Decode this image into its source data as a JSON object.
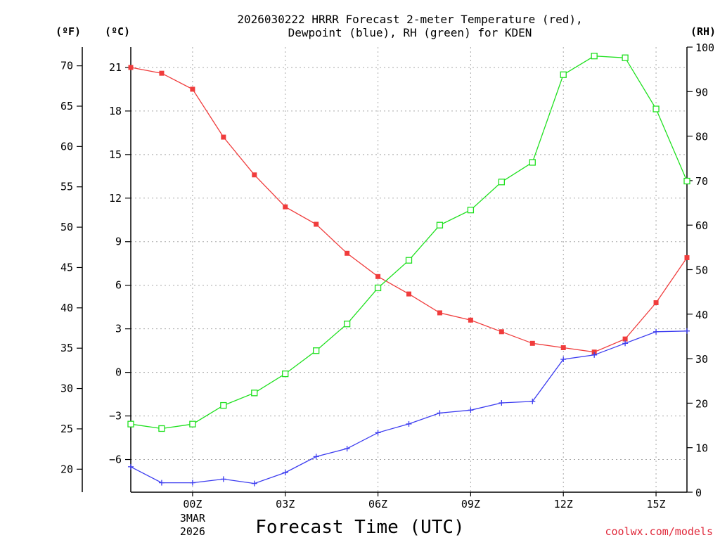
{
  "chart_data": {
    "type": "line",
    "title": [
      "2026030222 HRRR Forecast 2-meter Temperature (red),",
      "Dewpoint (blue), RH (green) for KDEN"
    ],
    "xlabel": "Forecast Time (UTC)",
    "credit": "coolwx.com/models",
    "axis_units": {
      "fahrenheit": "(ºF)",
      "celsius": "(ºC)",
      "rh": "(RH)"
    },
    "x": [
      -2,
      -1,
      0,
      1,
      2,
      3,
      4,
      5,
      6,
      7,
      8,
      9,
      10,
      11,
      12,
      13,
      14,
      15,
      16
    ],
    "xlim": [
      -2,
      16
    ],
    "x_ticks": [
      {
        "x": 0,
        "label": "00Z",
        "sub": [
          "3MAR",
          "2026"
        ]
      },
      {
        "x": 3,
        "label": "03Z"
      },
      {
        "x": 6,
        "label": "06Z"
      },
      {
        "x": 9,
        "label": "09Z"
      },
      {
        "x": 12,
        "label": "12Z"
      },
      {
        "x": 15,
        "label": "15Z"
      }
    ],
    "celsius_range": [
      -8.25,
      22.4
    ],
    "celsius_ticks": [
      21,
      18,
      15,
      12,
      9,
      6,
      3,
      0,
      -3,
      -6
    ],
    "fahrenheit_ticks": [
      70,
      65,
      60,
      55,
      50,
      45,
      40,
      35,
      30,
      25,
      20
    ],
    "rh_range": [
      0,
      100
    ],
    "rh_ticks": [
      100,
      90,
      80,
      70,
      60,
      50,
      40,
      30,
      20,
      10,
      0
    ],
    "series": [
      {
        "name": "Temperature",
        "axis": "celsius",
        "color": "#f03c3c",
        "marker": "filled-square",
        "values": [
          21.0,
          20.6,
          19.5,
          16.2,
          13.6,
          11.4,
          10.2,
          8.2,
          6.6,
          5.4,
          4.1,
          3.6,
          2.8,
          2.0,
          1.7,
          1.4,
          2.3,
          4.8,
          7.9
        ]
      },
      {
        "name": "Dewpoint",
        "axis": "celsius",
        "color": "#3c3cf0",
        "marker": "plus",
        "values": [
          -6.5,
          -7.6,
          -7.6,
          -7.35,
          -7.65,
          -6.9,
          -5.8,
          -5.25,
          -4.15,
          -3.55,
          -2.8,
          -2.6,
          -2.1,
          -2.0,
          0.9,
          1.2,
          2.0,
          2.8,
          2.85
        ]
      },
      {
        "name": "RH",
        "axis": "rh",
        "color": "#1ee01e",
        "marker": "open-square",
        "values": [
          15.3,
          14.3,
          15.3,
          19.5,
          22.3,
          26.6,
          31.8,
          37.8,
          45.9,
          52.1,
          60.0,
          63.4,
          69.7,
          74.1,
          93.8,
          98.0,
          97.6,
          86.1,
          69.9
        ]
      }
    ]
  }
}
